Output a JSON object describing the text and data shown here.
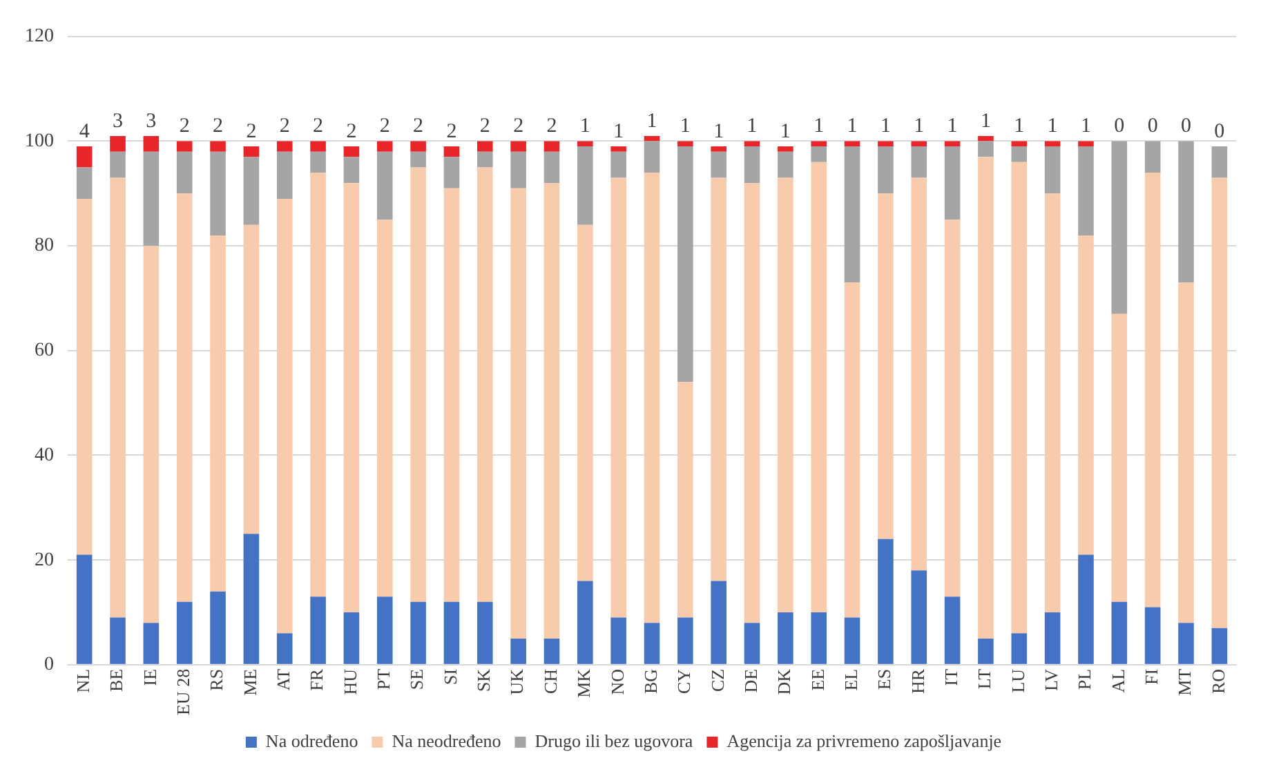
{
  "chart_data": {
    "type": "bar",
    "stacked": true,
    "categories": [
      "NL",
      "BE",
      "IE",
      "EU 28",
      "RS",
      "ME",
      "AT",
      "FR",
      "HU",
      "PT",
      "SE",
      "SI",
      "SK",
      "UK",
      "CH",
      "MK",
      "NO",
      "BG",
      "CY",
      "CZ",
      "DE",
      "DK",
      "EE",
      "EL",
      "ES",
      "HR",
      "IT",
      "LT",
      "LU",
      "LV",
      "PL",
      "AL",
      "FI",
      "MT",
      "RO"
    ],
    "series": [
      {
        "name": "Na određeno",
        "color": "#4472c4",
        "values": [
          21,
          9,
          8,
          12,
          14,
          25,
          6,
          13,
          10,
          13,
          12,
          12,
          12,
          5,
          5,
          16,
          9,
          8,
          9,
          16,
          8,
          10,
          10,
          9,
          24,
          18,
          13,
          5,
          6,
          10,
          21,
          12,
          11,
          8,
          7
        ]
      },
      {
        "name": "Na neodređeno",
        "color": "#f8cbad",
        "values": [
          68,
          84,
          72,
          78,
          68,
          59,
          83,
          81,
          82,
          72,
          83,
          79,
          83,
          86,
          87,
          68,
          84,
          86,
          45,
          77,
          84,
          83,
          86,
          64,
          66,
          75,
          72,
          92,
          90,
          80,
          61,
          55,
          83,
          65,
          86
        ]
      },
      {
        "name": "Drugo ili bez ugovora",
        "color": "#a5a5a5",
        "values": [
          6,
          5,
          18,
          8,
          16,
          13,
          9,
          4,
          5,
          13,
          3,
          6,
          3,
          7,
          6,
          15,
          5,
          6,
          45,
          5,
          7,
          5,
          3,
          26,
          9,
          6,
          14,
          3,
          3,
          9,
          17,
          33,
          6,
          27,
          6
        ]
      },
      {
        "name": "Agencija za privremeno zapošljavanje",
        "color": "#e8262a",
        "values": [
          4,
          3,
          3,
          2,
          2,
          2,
          2,
          2,
          2,
          2,
          2,
          2,
          2,
          2,
          2,
          1,
          1,
          1,
          1,
          1,
          1,
          1,
          1,
          1,
          1,
          1,
          1,
          1,
          1,
          1,
          1,
          0,
          0,
          0,
          0
        ],
        "value_labels": [
          "4",
          "3",
          "3",
          "2",
          "2",
          "2",
          "2",
          "2",
          "2",
          "2",
          "2",
          "2",
          "2",
          "2",
          "2",
          "1",
          "1",
          "1",
          "1",
          "1",
          "1",
          "1",
          "1",
          "1",
          "1",
          "1",
          "1",
          "1",
          "1",
          "1",
          "1",
          "0",
          "0",
          "0",
          "0"
        ]
      }
    ],
    "ylim": [
      0,
      120
    ],
    "yticks": [
      0,
      20,
      40,
      60,
      80,
      100,
      120
    ],
    "grid": "y",
    "legend": "bottom"
  }
}
